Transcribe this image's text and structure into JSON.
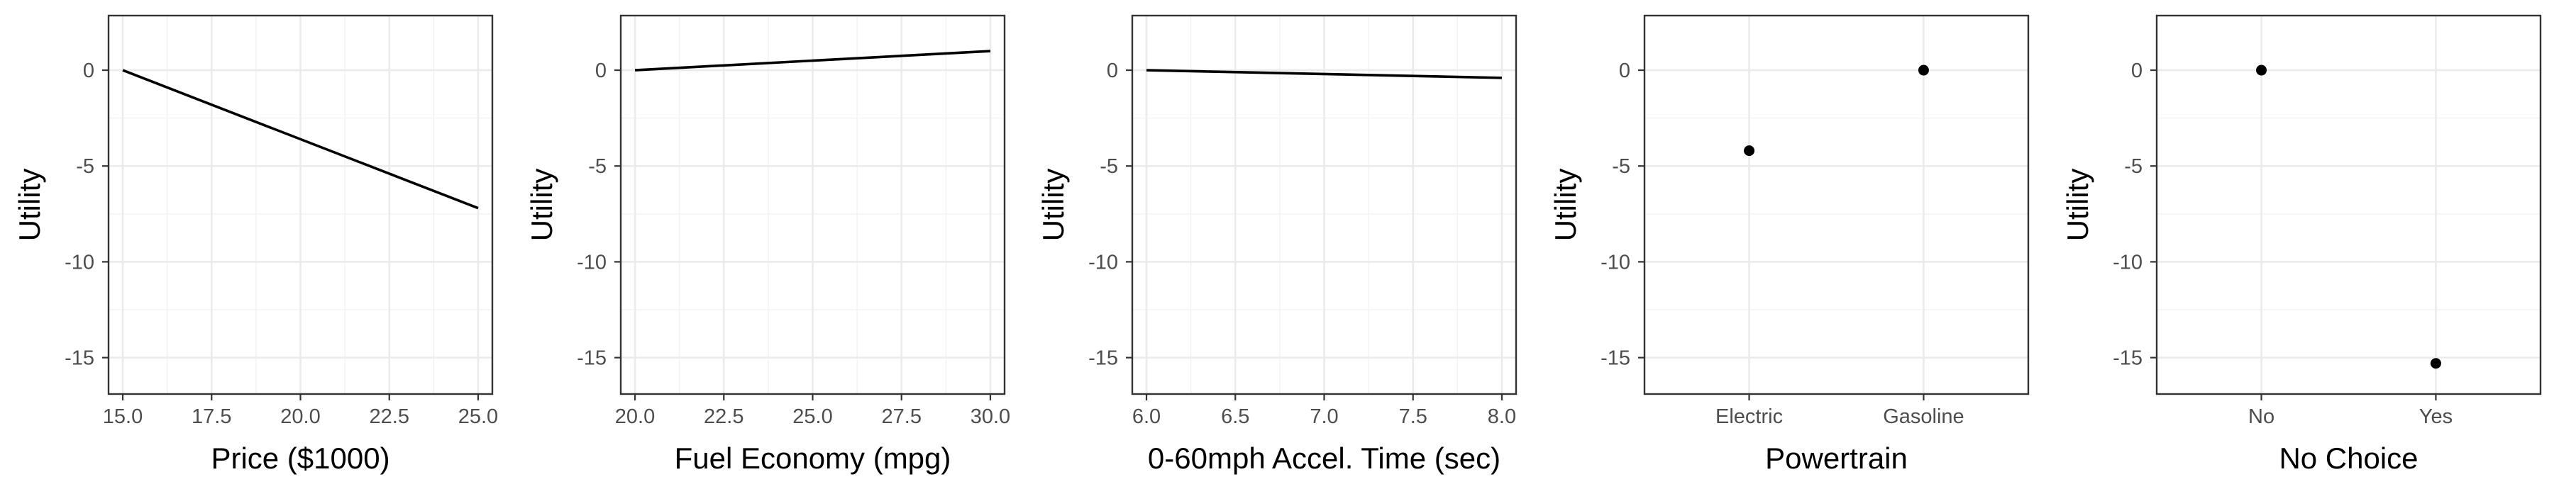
{
  "chart_data": [
    {
      "type": "line",
      "xlabel": "Price ($1000)",
      "ylabel": "Utility",
      "xlim": [
        14.6,
        25.4
      ],
      "ylim": [
        -16.9,
        2.85
      ],
      "x_ticks": [
        15.0,
        17.5,
        20.0,
        22.5,
        25.0
      ],
      "x_tick_labels": [
        "15.0",
        "17.5",
        "20.0",
        "22.5",
        "25.0"
      ],
      "y_ticks": [
        0,
        -5,
        -10,
        -15
      ],
      "y_tick_labels": [
        "0",
        "-5",
        "-10",
        "-15"
      ],
      "series": [
        {
          "x": [
            15,
            25
          ],
          "y": [
            0,
            -7.2
          ]
        }
      ],
      "grid": true,
      "legend": "none"
    },
    {
      "type": "line",
      "xlabel": "Fuel Economy (mpg)",
      "ylabel": "Utility",
      "xlim": [
        19.6,
        30.4
      ],
      "ylim": [
        -16.9,
        2.85
      ],
      "x_ticks": [
        20.0,
        22.5,
        25.0,
        27.5,
        30.0
      ],
      "x_tick_labels": [
        "20.0",
        "22.5",
        "25.0",
        "27.5",
        "30.0"
      ],
      "y_ticks": [
        0,
        -5,
        -10,
        -15
      ],
      "y_tick_labels": [
        "0",
        "-5",
        "-10",
        "-15"
      ],
      "series": [
        {
          "x": [
            20,
            30
          ],
          "y": [
            0,
            1.0
          ]
        }
      ],
      "grid": true,
      "legend": "none"
    },
    {
      "type": "line",
      "xlabel": "0-60mph Accel. Time (sec)",
      "ylabel": "Utility",
      "xlim": [
        5.92,
        8.08
      ],
      "ylim": [
        -16.9,
        2.85
      ],
      "x_ticks": [
        6.0,
        6.5,
        7.0,
        7.5,
        8.0
      ],
      "x_tick_labels": [
        "6.0",
        "6.5",
        "7.0",
        "7.5",
        "8.0"
      ],
      "y_ticks": [
        0,
        -5,
        -10,
        -15
      ],
      "y_tick_labels": [
        "0",
        "-5",
        "-10",
        "-15"
      ],
      "series": [
        {
          "x": [
            6,
            8
          ],
          "y": [
            0,
            -0.4
          ]
        }
      ],
      "grid": true,
      "legend": "none"
    },
    {
      "type": "scatter",
      "xlabel": "Powertrain",
      "ylabel": "Utility",
      "categories": [
        "Electric",
        "Gasoline"
      ],
      "ylim": [
        -16.9,
        2.85
      ],
      "y_ticks": [
        0,
        -5,
        -10,
        -15
      ],
      "y_tick_labels": [
        "0",
        "-5",
        "-10",
        "-15"
      ],
      "values": [
        -4.2,
        0
      ],
      "grid": true,
      "legend": "none"
    },
    {
      "type": "scatter",
      "xlabel": "No Choice",
      "ylabel": "Utility",
      "categories": [
        "No",
        "Yes"
      ],
      "ylim": [
        -16.9,
        2.85
      ],
      "y_ticks": [
        0,
        -5,
        -10,
        -15
      ],
      "y_tick_labels": [
        "0",
        "-5",
        "-10",
        "-15"
      ],
      "values": [
        0,
        -15.3
      ],
      "grid": true,
      "legend": "none"
    }
  ]
}
